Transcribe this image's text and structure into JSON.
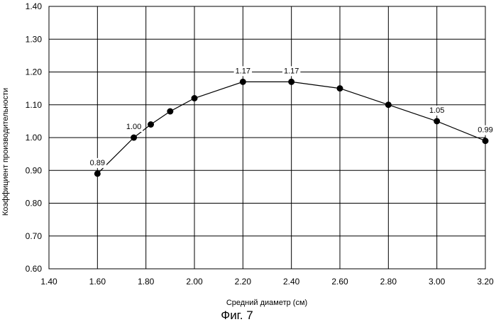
{
  "chart_data": {
    "type": "line",
    "xlabel": "Средний диаметр (см)",
    "ylabel": "Коэффициент производительности",
    "caption": "Фиг. 7",
    "xlim": [
      1.4,
      3.2
    ],
    "ylim": [
      0.6,
      1.4
    ],
    "grid": true,
    "x_ticks": [
      "1.40",
      "1.60",
      "1.80",
      "2.00",
      "2.20",
      "2.40",
      "2.60",
      "2.80",
      "3.00",
      "3.20"
    ],
    "y_ticks": [
      "0.60",
      "0.70",
      "0.80",
      "0.90",
      "1.00",
      "1.10",
      "1.20",
      "1.30",
      "1.40"
    ],
    "points": [
      {
        "x": 1.6,
        "y": 0.89,
        "label": "0.89"
      },
      {
        "x": 1.75,
        "y": 1.0,
        "label": "1.00"
      },
      {
        "x": 1.82,
        "y": 1.04
      },
      {
        "x": 1.9,
        "y": 1.08
      },
      {
        "x": 2.0,
        "y": 1.12
      },
      {
        "x": 2.2,
        "y": 1.17,
        "label": "1.17"
      },
      {
        "x": 2.4,
        "y": 1.17,
        "label": "1.17"
      },
      {
        "x": 2.6,
        "y": 1.15
      },
      {
        "x": 2.8,
        "y": 1.1
      },
      {
        "x": 3.0,
        "y": 1.05,
        "label": "1.05"
      },
      {
        "x": 3.2,
        "y": 0.99,
        "label": "0.99"
      }
    ]
  }
}
